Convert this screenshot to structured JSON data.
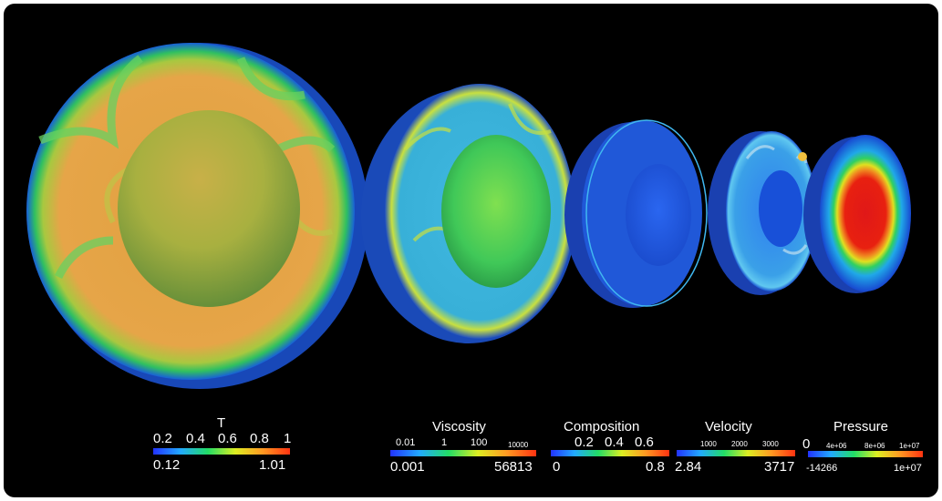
{
  "colorbars": {
    "t": {
      "title": "T",
      "top_ticks": [
        "0.2",
        "0.4",
        "0.6",
        "0.8",
        "1"
      ],
      "min": "0.12",
      "max": "1.01",
      "colors": [
        "#2233ff",
        "#22aaff",
        "#22dd66",
        "#ddee22",
        "#ff9922",
        "#ff3311"
      ]
    },
    "viscosity": {
      "title": "Viscosity",
      "top_ticks": [
        "0.01",
        "1",
        "100",
        "10000"
      ],
      "min": "0.001",
      "max": "56813",
      "colors": [
        "#2233ff",
        "#22aaff",
        "#22dd66",
        "#ddee22",
        "#ff9922",
        "#ff3311"
      ]
    },
    "composition": {
      "title": "Composition",
      "top_ticks": [
        "0.2",
        "0.4",
        "0.6"
      ],
      "min": "0",
      "max": "0.8",
      "colors": [
        "#2233ff",
        "#22aaff",
        "#22dd66",
        "#ddee22",
        "#ff9922",
        "#ff3311"
      ]
    },
    "velocity": {
      "title": "Velocity",
      "top_ticks": [
        "1000",
        "2000",
        "3000"
      ],
      "min": "2.84",
      "max": "3717",
      "colors": [
        "#2233ff",
        "#22aaff",
        "#22dd66",
        "#ddee22",
        "#ff9922",
        "#ff3311"
      ]
    },
    "pressure": {
      "title": "Pressure",
      "top_ticks": [
        "4e+06",
        "8e+06",
        "1e+07"
      ],
      "left_label": "0",
      "min": "-14266",
      "max": "1e+07",
      "colors": [
        "#2233ff",
        "#22aaff",
        "#22dd66",
        "#ddee22",
        "#ff9922",
        "#ff3311"
      ]
    }
  }
}
